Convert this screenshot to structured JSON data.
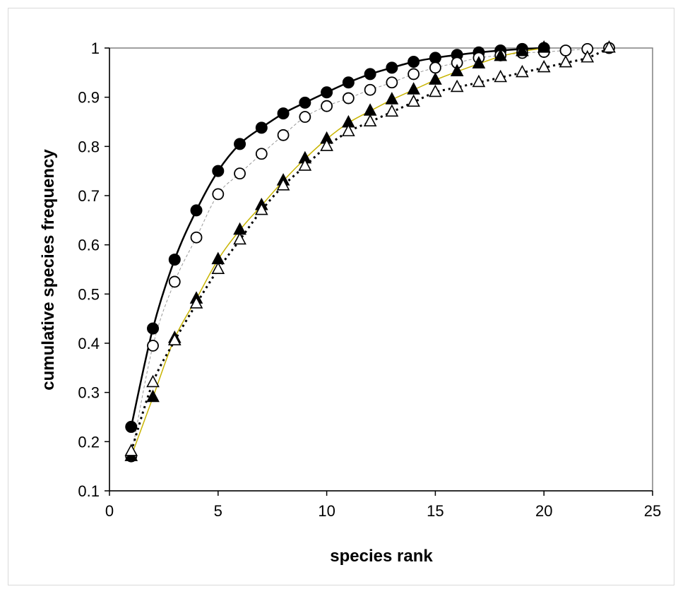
{
  "chart_data": {
    "type": "scatter",
    "title": "",
    "xlabel": "species rank",
    "ylabel": "cumulative species frequency",
    "xlim": [
      0,
      25
    ],
    "ylim": [
      0.1,
      1.0
    ],
    "x_ticks": [
      "0",
      "5",
      "10",
      "15",
      "20",
      "25"
    ],
    "y_ticks": [
      "0.1",
      "0.2",
      "0.3",
      "0.4",
      "0.5",
      "0.6",
      "0.7",
      "0.8",
      "0.9",
      "1"
    ],
    "grid": false,
    "legend": "none",
    "series": [
      {
        "marker": "filled-circle",
        "line": "solid",
        "line_color": "#000000",
        "x": [
          1,
          2,
          3,
          4,
          5,
          6,
          7,
          8,
          9,
          10,
          11,
          12,
          13,
          14,
          15,
          16,
          17,
          18,
          19,
          20
        ],
        "y": [
          0.23,
          0.43,
          0.57,
          0.67,
          0.75,
          0.805,
          0.838,
          0.867,
          0.889,
          0.91,
          0.93,
          0.947,
          0.96,
          0.972,
          0.98,
          0.986,
          0.991,
          0.995,
          0.998,
          1.0
        ]
      },
      {
        "marker": "open-circle",
        "line": "dashed-thin",
        "line_color": "#999999",
        "x": [
          1,
          2,
          3,
          4,
          5,
          6,
          7,
          8,
          9,
          10,
          11,
          12,
          13,
          14,
          15,
          16,
          17,
          18,
          19,
          20,
          21,
          22,
          23
        ],
        "y": [
          0.17,
          0.395,
          0.525,
          0.615,
          0.703,
          0.745,
          0.785,
          0.823,
          0.86,
          0.882,
          0.898,
          0.915,
          0.93,
          0.947,
          0.96,
          0.97,
          0.98,
          0.985,
          0.99,
          0.992,
          0.995,
          0.998,
          1.0
        ]
      },
      {
        "marker": "filled-triangle",
        "line": "solid-thin",
        "line_color": "#c8b400",
        "x": [
          1,
          2,
          3,
          4,
          5,
          6,
          7,
          8,
          9,
          10,
          11,
          12,
          13,
          14,
          15,
          16,
          17,
          18,
          19,
          20
        ],
        "y": [
          0.17,
          0.29,
          0.41,
          0.49,
          0.57,
          0.63,
          0.68,
          0.73,
          0.775,
          0.815,
          0.848,
          0.872,
          0.895,
          0.915,
          0.935,
          0.952,
          0.968,
          0.983,
          0.993,
          1.0
        ]
      },
      {
        "marker": "open-triangle",
        "line": "dotted",
        "line_color": "#000000",
        "x": [
          1,
          2,
          3,
          4,
          5,
          6,
          7,
          8,
          9,
          10,
          11,
          12,
          13,
          14,
          15,
          16,
          17,
          18,
          19,
          20,
          21,
          22,
          23
        ],
        "y": [
          0.18,
          0.32,
          0.405,
          0.48,
          0.55,
          0.61,
          0.67,
          0.72,
          0.76,
          0.8,
          0.83,
          0.85,
          0.87,
          0.89,
          0.91,
          0.92,
          0.93,
          0.94,
          0.95,
          0.96,
          0.97,
          0.98,
          1.0
        ]
      }
    ]
  }
}
